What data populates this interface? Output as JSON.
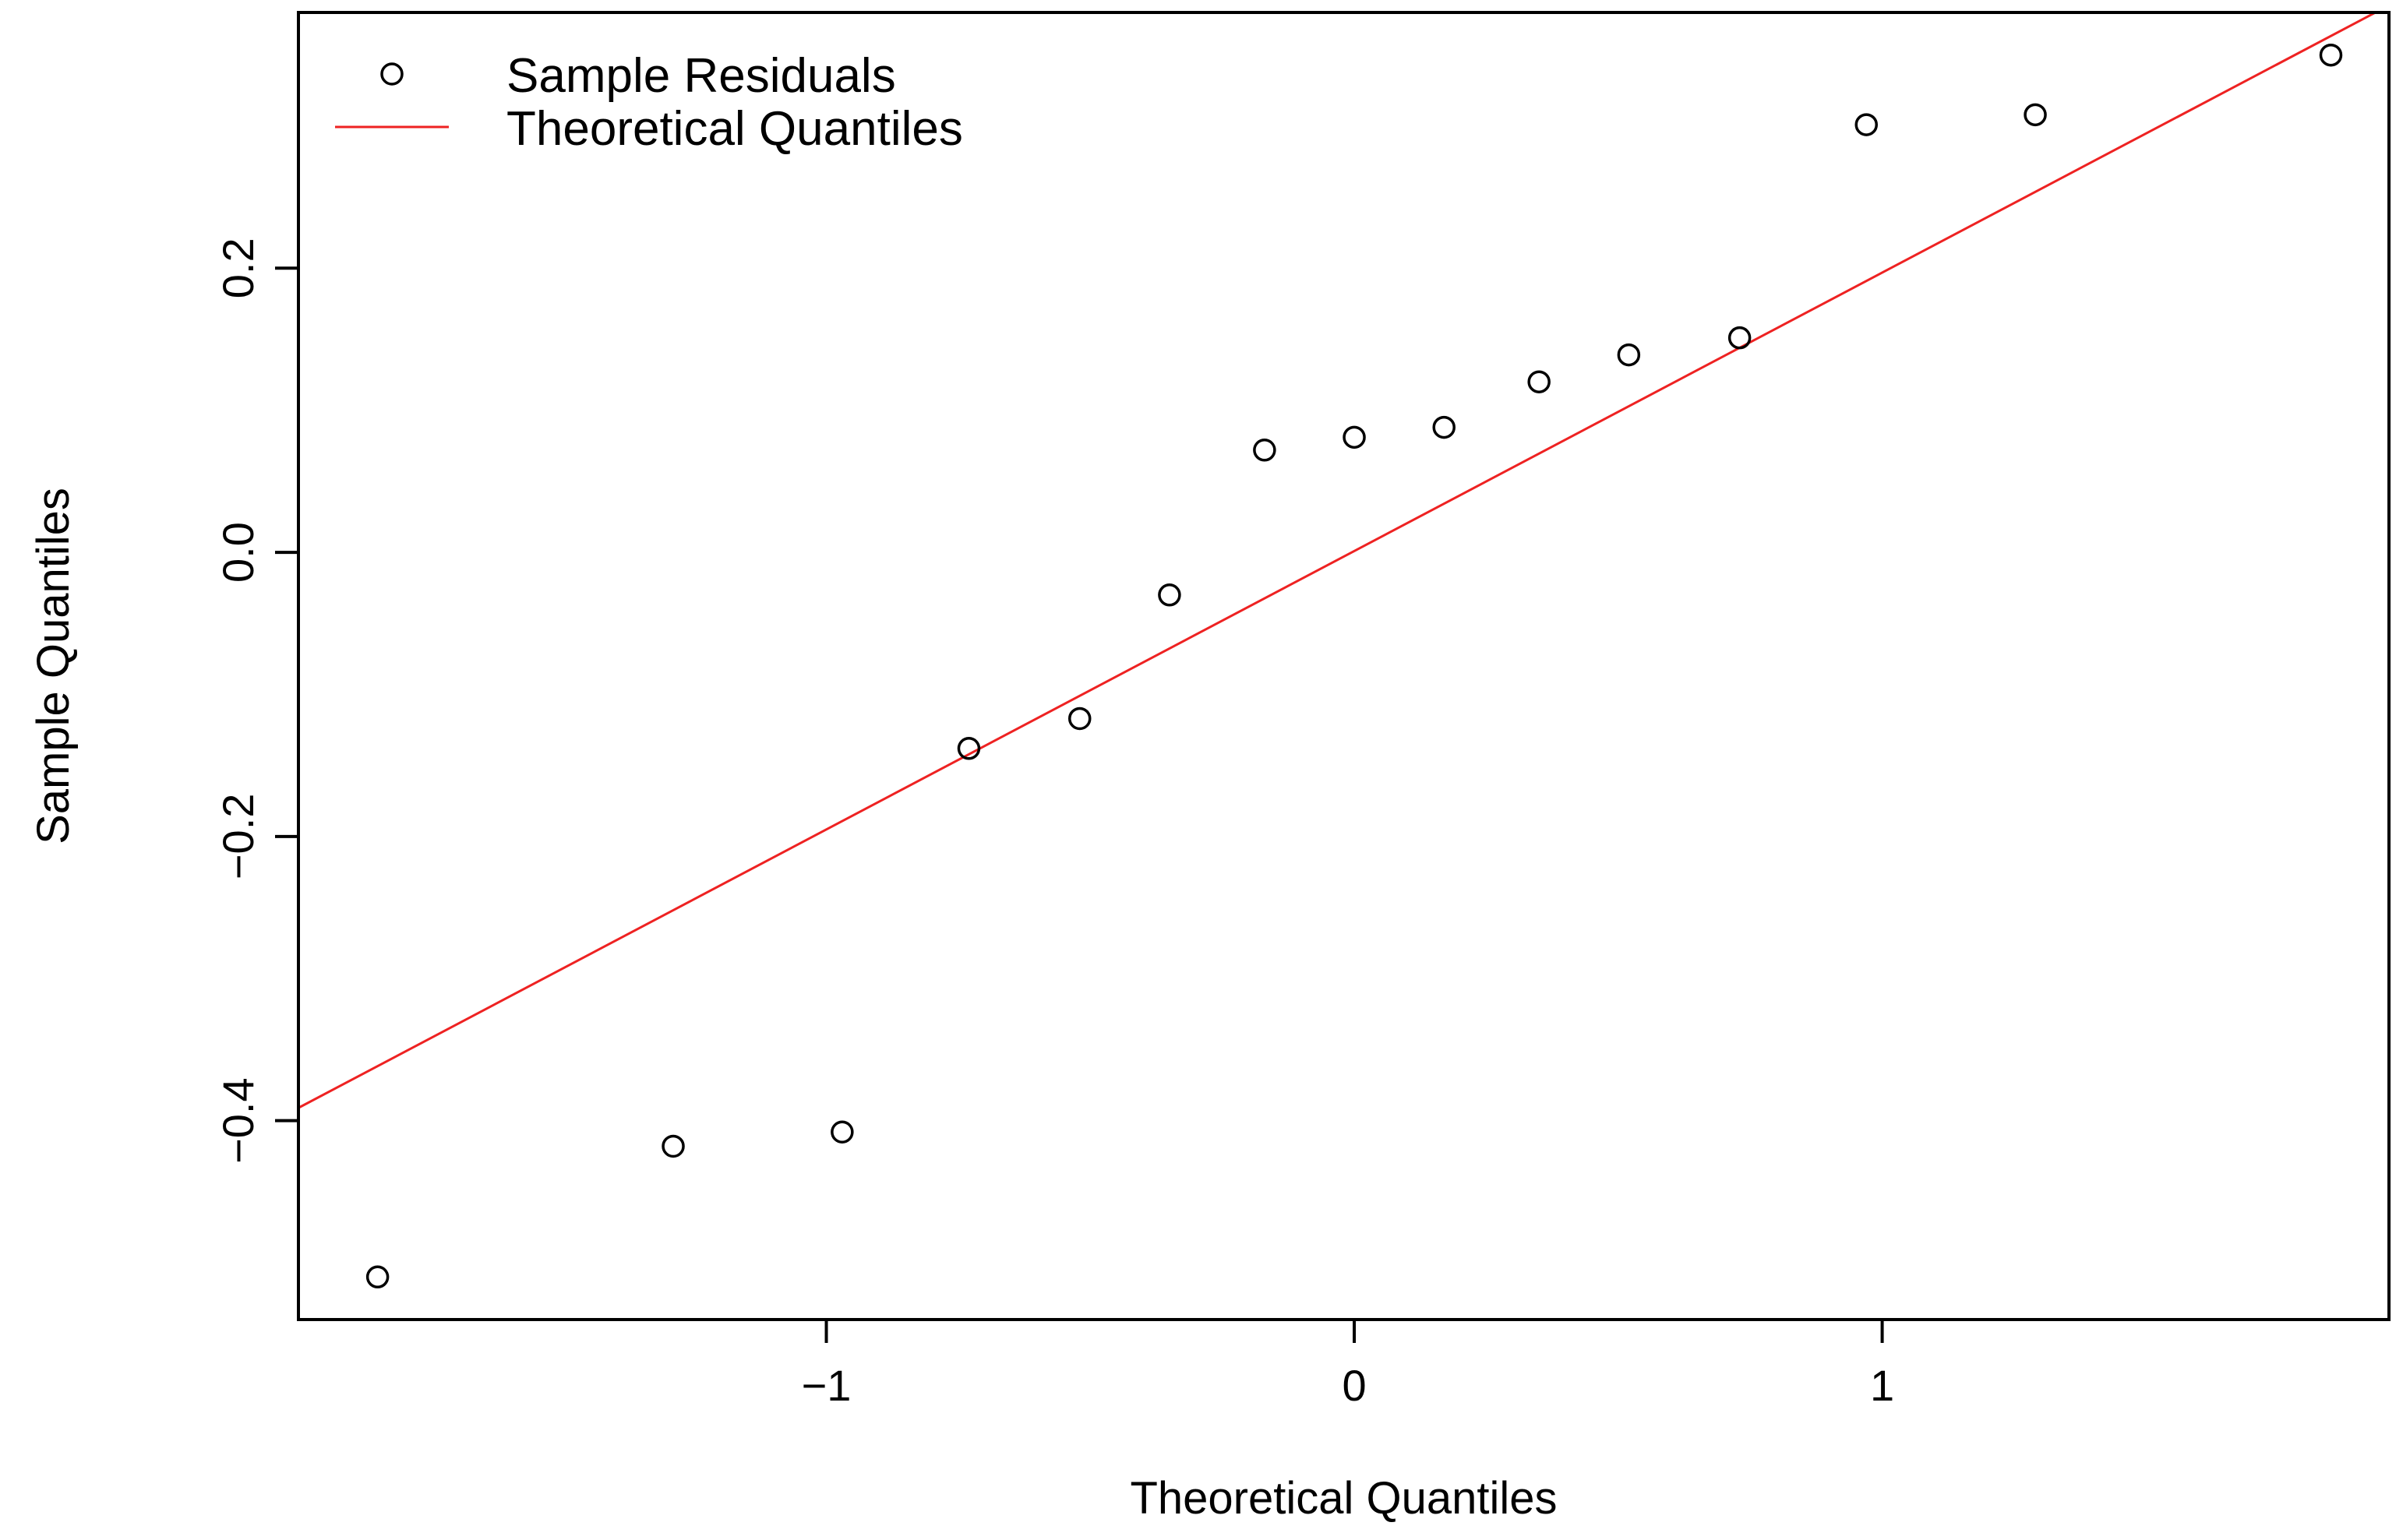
{
  "chart_data": {
    "type": "scatter",
    "title": "",
    "xlabel": "Theoretical Quantiles",
    "ylabel": "Sample Quantiles",
    "xlim": [
      -2.0,
      1.96
    ],
    "ylim": [
      -0.54,
      0.38
    ],
    "x_ticks": [
      {
        "value": -1,
        "label": "−1"
      },
      {
        "value": 0,
        "label": "0"
      },
      {
        "value": 1,
        "label": "1"
      }
    ],
    "y_ticks": [
      {
        "value": -0.4,
        "label": "−0.4"
      },
      {
        "value": -0.2,
        "label": "−0.2"
      },
      {
        "value": 0.0,
        "label": "0.0"
      },
      {
        "value": 0.2,
        "label": "0.2"
      }
    ],
    "grid": false,
    "legend_position": "top-left",
    "series": [
      {
        "name": "Sample Residuals",
        "kind": "points",
        "marker": "open-circle",
        "color": "#000000",
        "x": [
          -1.85,
          -1.29,
          -0.97,
          -0.73,
          -0.52,
          -0.35,
          -0.17,
          0.0,
          0.17,
          0.35,
          0.52,
          0.73,
          0.97,
          1.29,
          1.85
        ],
        "y": [
          -0.51,
          -0.418,
          -0.408,
          -0.138,
          -0.117,
          -0.03,
          0.072,
          0.081,
          0.088,
          0.12,
          0.139,
          0.151,
          0.301,
          0.308,
          0.35
        ]
      },
      {
        "name": "Theoretical Quantiles",
        "kind": "line",
        "color": "#ee2222",
        "x": [
          -2.0,
          1.96
        ],
        "y": [
          -0.391,
          0.385
        ]
      }
    ]
  }
}
